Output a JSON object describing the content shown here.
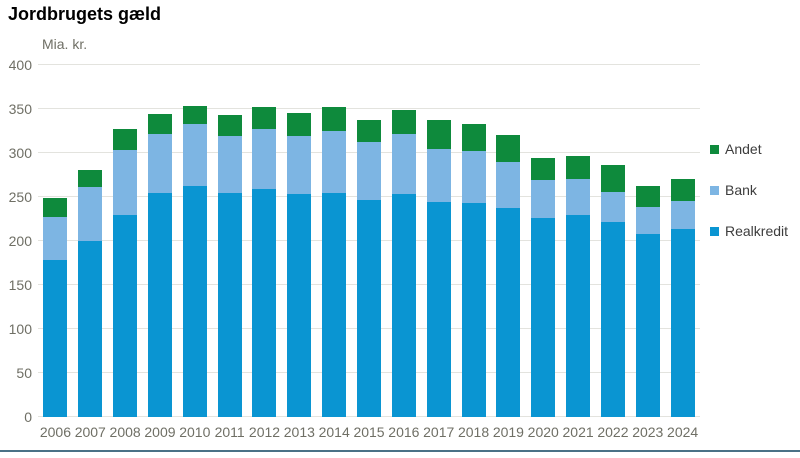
{
  "page": {
    "title": "Jordbrugets gæld"
  },
  "chart_data": {
    "type": "bar",
    "stacked": true,
    "title": "Jordbrugets gæld",
    "unit_label": "Mia. kr.",
    "xlabel": "",
    "ylabel": "Mia. kr.",
    "ylim": [
      0,
      400
    ],
    "yticks": [
      0,
      50,
      100,
      150,
      200,
      250,
      300,
      350,
      400
    ],
    "grid": true,
    "legend_position": "right",
    "categories": [
      "2006",
      "2007",
      "2008",
      "2009",
      "2010",
      "2011",
      "2012",
      "2013",
      "2014",
      "2015",
      "2016",
      "2017",
      "2018",
      "2019",
      "2020",
      "2021",
      "2022",
      "2023",
      "2024"
    ],
    "series": [
      {
        "name": "Realkredit",
        "color": "#0a95d2",
        "values": [
          178,
          200,
          230,
          254,
          262,
          254,
          259,
          253,
          255,
          247,
          253,
          244,
          243,
          237,
          226,
          229,
          222,
          208,
          214
        ]
      },
      {
        "name": "Bank",
        "color": "#7db5e3",
        "values": [
          49,
          61,
          73,
          68,
          71,
          65,
          68,
          66,
          70,
          66,
          69,
          60,
          59,
          53,
          43,
          41,
          34,
          31,
          32
        ]
      },
      {
        "name": "Andet",
        "color": "#0e8a3c",
        "values": [
          22,
          20,
          24,
          22,
          21,
          24,
          25,
          26,
          27,
          25,
          27,
          33,
          31,
          30,
          25,
          27,
          30,
          24,
          25
        ]
      }
    ]
  },
  "colors": {
    "gridline": "#e3e3de",
    "axis_text": "#6f6f65",
    "legend_text": "#3d3d3d",
    "title_text": "#000000",
    "bottom_rule": "#4a7186"
  }
}
